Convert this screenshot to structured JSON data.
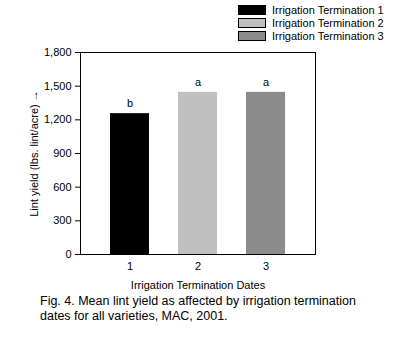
{
  "chart_data": {
    "type": "bar",
    "caption": "Fig. 4. Mean lint yield as affected by irrigation termination dates for all varieties, MAC, 2001.",
    "xlabel": "Irrigation Termination Dates",
    "ylabel": "Lint yield (lbs. lint/acre)",
    "categories": [
      "1",
      "2",
      "3"
    ],
    "series": [
      {
        "name": "Irrigation Termination 1",
        "color": "#000000",
        "values": [
          1255,
          null,
          null
        ]
      },
      {
        "name": "Irrigation Termination 2",
        "color": "#c0c0c0",
        "values": [
          null,
          1445,
          null
        ]
      },
      {
        "name": "Irrigation Termination 3",
        "color": "#8c8c8c",
        "values": [
          null,
          null,
          1445
        ]
      }
    ],
    "annotations": [
      "b",
      "a",
      "a"
    ],
    "ylim": [
      0,
      1800
    ],
    "yticks": [
      0,
      300,
      600,
      900,
      1200,
      1500,
      1800
    ],
    "grid": false,
    "legend": "top-right"
  }
}
